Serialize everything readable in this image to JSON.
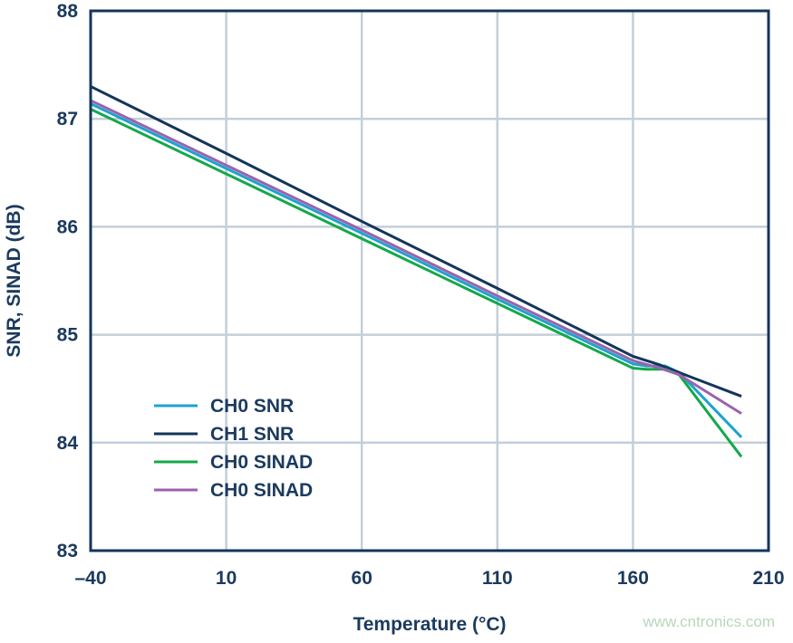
{
  "chart_data": {
    "type": "line",
    "title": "",
    "xlabel": "Temperature (°C)",
    "ylabel": "SNR, SINAD (dB)",
    "xlim": [
      -40,
      210
    ],
    "ylim": [
      83,
      88
    ],
    "xticks": [
      -40,
      10,
      60,
      110,
      160,
      210
    ],
    "xtick_labels": [
      "–40",
      "10",
      "60",
      "110",
      "160",
      "210"
    ],
    "yticks": [
      83,
      84,
      85,
      86,
      87,
      88
    ],
    "grid": true,
    "legend_position": "lower-left",
    "series": [
      {
        "name": "CH0 SNR",
        "color": "#1ba3cf",
        "x": [
          -40,
          10,
          60,
          110,
          160,
          165,
          172,
          177,
          200
        ],
        "y": [
          87.14,
          86.54,
          85.94,
          85.33,
          84.73,
          84.71,
          84.71,
          84.65,
          84.05
        ]
      },
      {
        "name": "CH1 SNR",
        "color": "#13355a",
        "x": [
          -40,
          10,
          60,
          110,
          160,
          170,
          177,
          200
        ],
        "y": [
          87.3,
          86.68,
          86.05,
          85.43,
          84.8,
          84.72,
          84.65,
          84.43
        ]
      },
      {
        "name": "CH0 SINAD",
        "color": "#14a84b",
        "x": [
          -40,
          10,
          60,
          110,
          160,
          165,
          172,
          177,
          200
        ],
        "y": [
          87.09,
          86.49,
          85.89,
          85.29,
          84.69,
          84.68,
          84.68,
          84.63,
          83.87
        ]
      },
      {
        "name": "CH0 SINAD",
        "color": "#9b62ad",
        "x": [
          -40,
          10,
          60,
          110,
          160,
          170,
          177,
          200
        ],
        "y": [
          87.17,
          86.57,
          85.97,
          85.36,
          84.76,
          84.69,
          84.63,
          84.27
        ]
      }
    ]
  },
  "watermark": "www.cntronics.com"
}
